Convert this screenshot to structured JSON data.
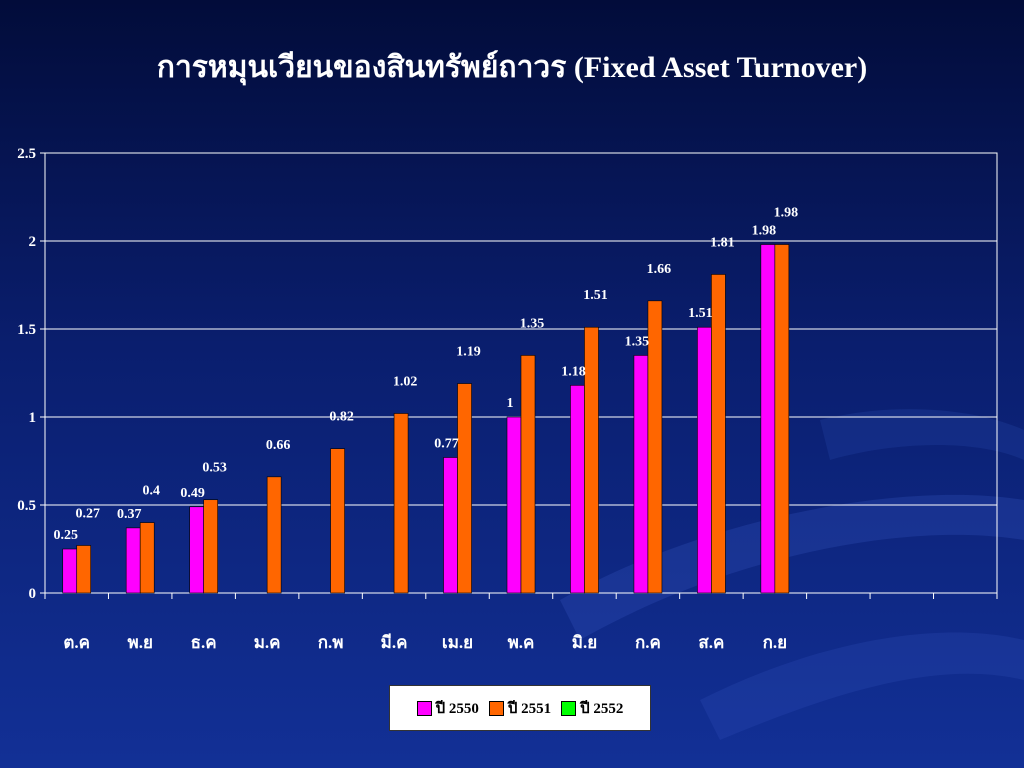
{
  "title": "การหมุนเวียนของสินทรัพย์ถาวร (Fixed Asset Turnover)",
  "chart_data": {
    "type": "bar",
    "title": "การหมุนเวียนของสินทรัพย์ถาวร (Fixed Asset Turnover)",
    "xlabel": "",
    "ylabel": "",
    "ylim": [
      0,
      2.5
    ],
    "yticks": [
      "0",
      "0.5",
      "1",
      "1.5",
      "2",
      "2.5"
    ],
    "grid": true,
    "legend_position": "bottom",
    "categories": [
      "ต.ค",
      "พ.ย",
      "ธ.ค",
      "ม.ค",
      "ก.พ",
      "มี.ค",
      "เม.ย",
      "พ.ค",
      "มิ.ย",
      "ก.ค",
      "ส.ค",
      "ก.ย",
      "",
      "",
      ""
    ],
    "series": [
      {
        "name": "ปี 2550",
        "color": "#ff00ff",
        "values": [
          0.25,
          0.37,
          0.49,
          null,
          null,
          null,
          0.77,
          1,
          1.18,
          1.35,
          1.51,
          1.98,
          null,
          null,
          null
        ],
        "labels": [
          "0.25",
          "0.37",
          "0.49",
          null,
          null,
          null,
          "0.77",
          "1",
          "1.18",
          "1.35",
          "1.51",
          "1.98",
          null,
          null,
          null
        ]
      },
      {
        "name": "ปี 2551",
        "color": "#ff6600",
        "values": [
          0.27,
          0.4,
          0.53,
          0.66,
          0.82,
          1.02,
          1.19,
          1.35,
          1.51,
          1.66,
          1.81,
          1.98,
          null,
          null,
          null
        ],
        "labels": [
          "0.27",
          "0.4",
          "0.53",
          "0.66",
          "0.82",
          "1.02",
          "1.19",
          "1.35",
          "1.51",
          "1.66",
          "1.81",
          "1.98",
          null,
          null,
          null
        ]
      },
      {
        "name": "ปี 2552",
        "color": "#00ff00",
        "values": [
          null,
          null,
          null,
          null,
          null,
          null,
          null,
          null,
          null,
          null,
          null,
          null,
          null,
          null,
          null
        ],
        "labels": []
      }
    ]
  }
}
